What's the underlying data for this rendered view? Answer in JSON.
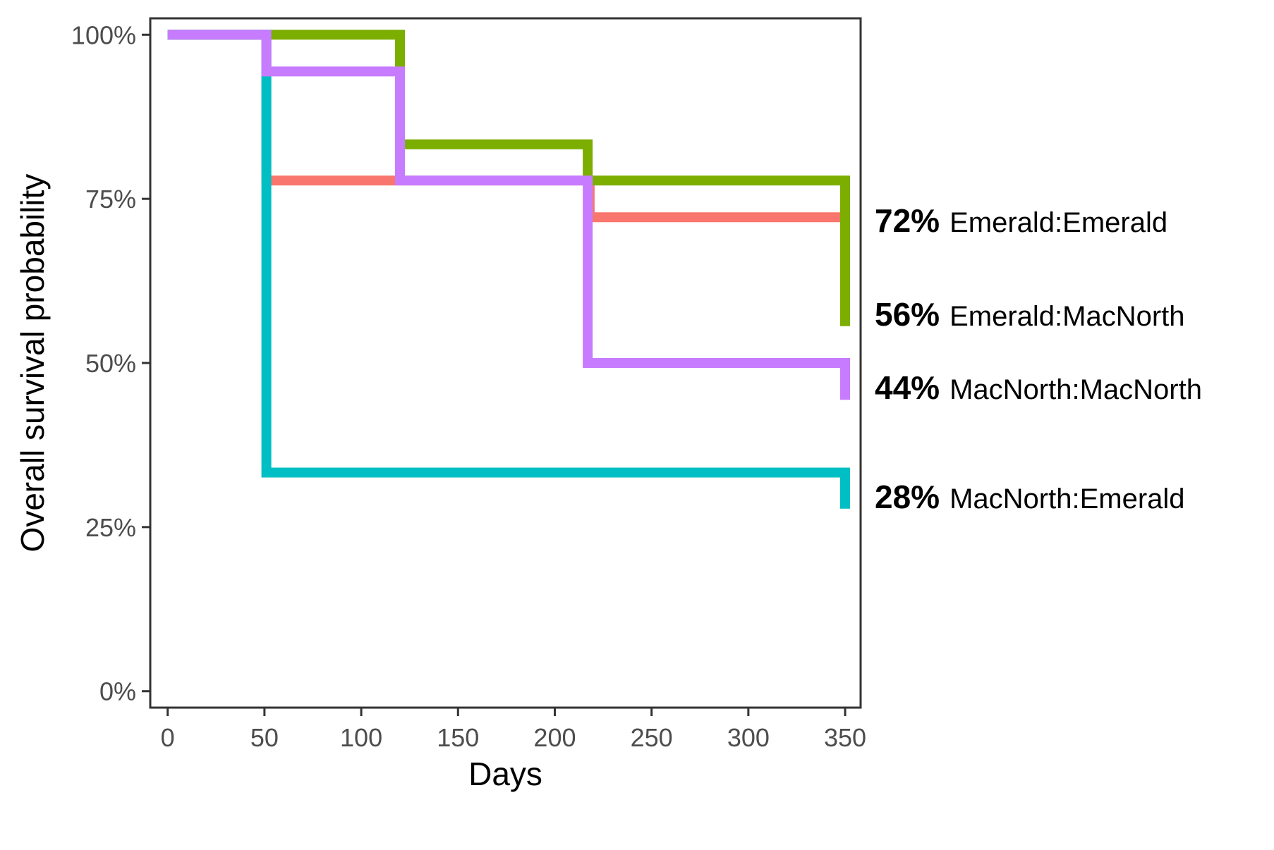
{
  "chart_data": {
    "type": "line",
    "step": true,
    "xlabel": "Days",
    "ylabel": "Overall survival probability",
    "xlim": [
      -9,
      358
    ],
    "ylim": [
      -2.5,
      102.5
    ],
    "x_ticks": [
      0,
      50,
      100,
      150,
      200,
      250,
      300,
      350
    ],
    "x_tick_labels": [
      "0",
      "50",
      "100",
      "150",
      "200",
      "250",
      "300",
      "350"
    ],
    "y_ticks": [
      0,
      25,
      50,
      75,
      100
    ],
    "y_tick_labels": [
      "0%",
      "25%",
      "50%",
      "75%",
      "100%"
    ],
    "grid": false,
    "legend": "none",
    "series": [
      {
        "name": "Emerald:Emerald",
        "color": "#F8766D",
        "end_pct": "72%",
        "points": [
          [
            0,
            100
          ],
          [
            51,
            100
          ],
          [
            51,
            77.8
          ],
          [
            218,
            77.8
          ],
          [
            218,
            72.2
          ],
          [
            350,
            72.2
          ]
        ]
      },
      {
        "name": "Emerald:MacNorth",
        "color": "#7CAE00",
        "end_pct": "56%",
        "points": [
          [
            0,
            100
          ],
          [
            120,
            100
          ],
          [
            120,
            83.3
          ],
          [
            217,
            83.3
          ],
          [
            217,
            77.8
          ],
          [
            350,
            77.8
          ],
          [
            350,
            55.6
          ]
        ]
      },
      {
        "name": "MacNorth:Emerald",
        "color": "#00BFC4",
        "end_pct": "28%",
        "points": [
          [
            0,
            100
          ],
          [
            51,
            100
          ],
          [
            51,
            33.3
          ],
          [
            350,
            33.3
          ],
          [
            350,
            27.8
          ]
        ]
      },
      {
        "name": "MacNorth:MacNorth",
        "color": "#C77CFF",
        "end_pct": "44%",
        "points": [
          [
            0,
            100
          ],
          [
            51,
            100
          ],
          [
            51,
            94.4
          ],
          [
            120,
            94.4
          ],
          [
            120,
            77.8
          ],
          [
            217,
            77.8
          ],
          [
            217,
            50
          ],
          [
            350,
            50
          ],
          [
            350,
            44.4
          ]
        ]
      }
    ],
    "end_labels_order": [
      "Emerald:Emerald",
      "Emerald:MacNorth",
      "MacNorth:MacNorth",
      "MacNorth:Emerald"
    ]
  }
}
